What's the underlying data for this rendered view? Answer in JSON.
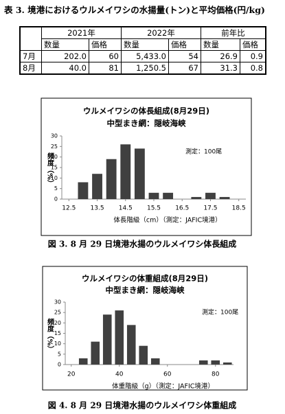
{
  "table": {
    "title": "表 3. 境港におけるウルメイワシの水揚量(トン)と平均価格(円/kg)",
    "groups": [
      "2021年",
      "2022年",
      "前年比"
    ],
    "subheaders": [
      "数量",
      "価格",
      "数量",
      "価格",
      "数量",
      "価格"
    ],
    "rows": [
      {
        "label": "7月",
        "cells": [
          "202.0",
          "60",
          "5,433.0",
          "54",
          "26.9",
          "0.9"
        ]
      },
      {
        "label": "8月",
        "cells": [
          "40.0",
          "81",
          "1,250.5",
          "67",
          "31.3",
          "0.8"
        ]
      }
    ]
  },
  "chart_data": [
    {
      "type": "bar",
      "title": "ウルメイワシの体長組成(8月29日)",
      "subtitle": "中型まき網：隠岐海峡",
      "annotation": "測定：100尾",
      "y_label": "頻度（%）",
      "x_label": "体長階級（cm）（測定：JAFIC境港）",
      "caption": "図 3. 8 月 29 日境港水揚のウルメイワシ体長組成",
      "x": [
        13.0,
        13.5,
        14.0,
        14.5,
        15.0,
        15.5,
        16.0,
        16.5,
        17.0,
        17.5,
        18.0
      ],
      "values": [
        8,
        12,
        19,
        26,
        24,
        3,
        3,
        0,
        1,
        3,
        1
      ],
      "color": "#404040",
      "xlim": [
        12.25,
        18.75
      ],
      "xticks": [
        12.5,
        13.5,
        14.5,
        15.5,
        16.5,
        17.5,
        18.5
      ],
      "ylim": [
        0,
        30
      ],
      "yticks": [
        0,
        5,
        10,
        15,
        20,
        25,
        30
      ],
      "grid": false
    },
    {
      "type": "bar",
      "title": "ウルメイワシの体重組成(8月29日)",
      "subtitle": "中型まき網：隠岐海峡",
      "annotation": "測定：100尾",
      "y_label": "頻度（%）",
      "x_label": "体重階級（g）（測定：JAFIC境港）",
      "caption": "図 4. 8 月 29 日境港水揚のウルメイワシ体重組成",
      "x": [
        25,
        30,
        35,
        40,
        45,
        50,
        55,
        60,
        65,
        70,
        75,
        80,
        85
      ],
      "values": [
        3,
        11,
        24,
        26,
        19,
        9,
        3,
        0,
        0,
        0,
        2,
        2,
        1
      ],
      "color": "#404040",
      "xlim": [
        17.5,
        87.5
      ],
      "xticks": [
        20,
        40,
        60,
        80
      ],
      "ylim": [
        0,
        30
      ],
      "yticks": [
        0,
        5,
        10,
        15,
        20,
        25,
        30
      ],
      "grid": false
    }
  ]
}
